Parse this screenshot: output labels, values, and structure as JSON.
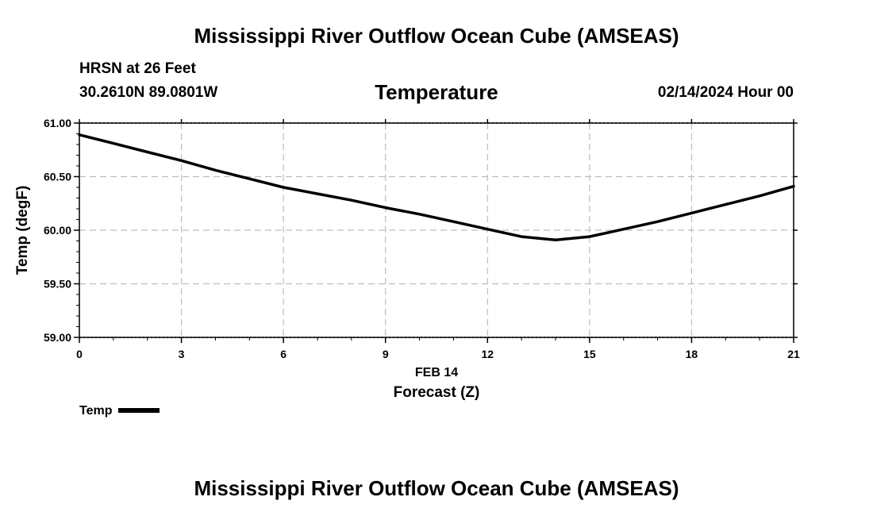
{
  "header": {
    "title": "Mississippi River Outflow Ocean Cube (AMSEAS)",
    "station": "HRSN at 26 Feet",
    "coords": "30.2610N  89.0801W",
    "datetime": "02/14/2024 Hour 00"
  },
  "footer": {
    "title": "Mississippi River Outflow Ocean Cube (AMSEAS)"
  },
  "legend": {
    "label": "Temp"
  },
  "chart_data": {
    "type": "line",
    "title": "Temperature",
    "xlabel": "Forecast (Z)",
    "xlabel_date": "FEB 14",
    "ylabel": "Temp (degF)",
    "xlim": [
      0,
      21
    ],
    "ylim": [
      59.0,
      61.0
    ],
    "x_ticks": [
      0,
      3,
      6,
      9,
      12,
      15,
      18,
      21
    ],
    "x_tick_labels": [
      "0",
      "3",
      "6",
      "9",
      "12",
      "15",
      "18",
      "21"
    ],
    "y_ticks": [
      59.0,
      59.5,
      60.0,
      60.5,
      61.0
    ],
    "y_tick_labels": [
      "59.00",
      "59.50",
      "60.00",
      "60.50",
      "61.00"
    ],
    "grid": true,
    "line_color": "#000000",
    "series": [
      {
        "name": "Temp",
        "x": [
          0,
          1,
          2,
          3,
          4,
          5,
          6,
          7,
          8,
          9,
          10,
          11,
          12,
          13,
          14,
          15,
          16,
          17,
          18,
          19,
          20,
          21
        ],
        "values": [
          60.89,
          60.81,
          60.73,
          60.65,
          60.56,
          60.48,
          60.4,
          60.34,
          60.28,
          60.21,
          60.15,
          60.08,
          60.01,
          59.94,
          59.91,
          59.94,
          60.01,
          60.08,
          60.16,
          60.24,
          60.32,
          60.41
        ]
      }
    ]
  }
}
